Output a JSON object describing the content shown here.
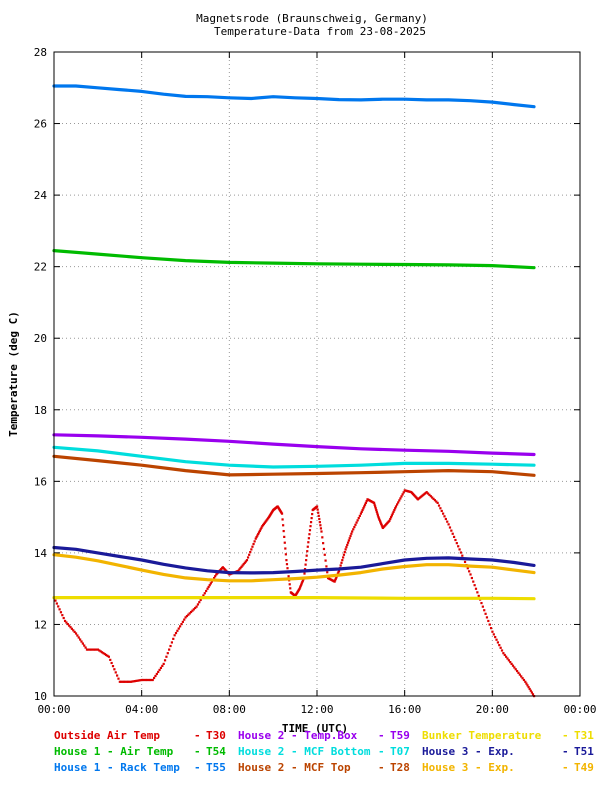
{
  "chart_data": {
    "type": "line",
    "title": "Magnetsrode (Braunschweig, Germany)",
    "subtitle": "Temperature-Data from 23-08-2025",
    "xlabel": "TIME (UTC)",
    "ylabel": "Temperature (deg C)",
    "xlim": [
      0,
      24
    ],
    "ylim": [
      10,
      28
    ],
    "grid": true,
    "x_ticks": [
      {
        "v": 0,
        "label": "00:00"
      },
      {
        "v": 4,
        "label": "04:00"
      },
      {
        "v": 8,
        "label": "08:00"
      },
      {
        "v": 12,
        "label": "12:00"
      },
      {
        "v": 16,
        "label": "16:00"
      },
      {
        "v": 20,
        "label": "20:00"
      },
      {
        "v": 24,
        "label": "00:00"
      }
    ],
    "y_ticks": [
      {
        "v": 10,
        "label": "10"
      },
      {
        "v": 12,
        "label": "12"
      },
      {
        "v": 14,
        "label": "14"
      },
      {
        "v": 16,
        "label": "16"
      },
      {
        "v": 18,
        "label": "18"
      },
      {
        "v": 20,
        "label": "20"
      },
      {
        "v": 22,
        "label": "22"
      },
      {
        "v": 24,
        "label": "24"
      },
      {
        "v": 26,
        "label": "26"
      },
      {
        "v": 28,
        "label": "28"
      }
    ],
    "series": [
      {
        "name": "Outside Air Temp",
        "code": "T30",
        "color": "#dd0000",
        "style": "dots",
        "points": [
          [
            0,
            12.75
          ],
          [
            0.5,
            12.1
          ],
          [
            1,
            11.75
          ],
          [
            1.5,
            11.3
          ],
          [
            2,
            11.3
          ],
          [
            2.5,
            11.1
          ],
          [
            3,
            10.4
          ],
          [
            3.5,
            10.4
          ],
          [
            4,
            10.45
          ],
          [
            4.5,
            10.45
          ],
          [
            5,
            10.9
          ],
          [
            5.5,
            11.7
          ],
          [
            6,
            12.2
          ],
          [
            6.5,
            12.5
          ],
          [
            7,
            13.0
          ],
          [
            7.4,
            13.4
          ],
          [
            7.7,
            13.6
          ],
          [
            8,
            13.4
          ],
          [
            8.4,
            13.5
          ],
          [
            8.8,
            13.8
          ],
          [
            9.2,
            14.4
          ],
          [
            9.5,
            14.75
          ],
          [
            9.8,
            15.0
          ],
          [
            10,
            15.2
          ],
          [
            10.2,
            15.3
          ],
          [
            10.4,
            15.1
          ],
          [
            10.6,
            13.8
          ],
          [
            10.8,
            12.9
          ],
          [
            11,
            12.8
          ],
          [
            11.2,
            13.0
          ],
          [
            11.4,
            13.3
          ],
          [
            11.6,
            14.3
          ],
          [
            11.8,
            15.2
          ],
          [
            12,
            15.3
          ],
          [
            12.2,
            14.6
          ],
          [
            12.5,
            13.3
          ],
          [
            12.8,
            13.2
          ],
          [
            13,
            13.5
          ],
          [
            13.3,
            14.1
          ],
          [
            13.6,
            14.6
          ],
          [
            14,
            15.1
          ],
          [
            14.3,
            15.5
          ],
          [
            14.6,
            15.4
          ],
          [
            14.8,
            15.0
          ],
          [
            15,
            14.7
          ],
          [
            15.3,
            14.9
          ],
          [
            15.6,
            15.3
          ],
          [
            16,
            15.75
          ],
          [
            16.3,
            15.7
          ],
          [
            16.6,
            15.5
          ],
          [
            17,
            15.7
          ],
          [
            17.5,
            15.4
          ],
          [
            18,
            14.8
          ],
          [
            18.5,
            14.1
          ],
          [
            19,
            13.4
          ],
          [
            19.5,
            12.6
          ],
          [
            20,
            11.8
          ],
          [
            20.5,
            11.2
          ],
          [
            21,
            10.8
          ],
          [
            21.5,
            10.4
          ],
          [
            21.9,
            10.0
          ]
        ]
      },
      {
        "name": "House 1 - Air Temp",
        "code": "T54",
        "color": "#00bb00",
        "style": "line",
        "points": [
          [
            0,
            22.45
          ],
          [
            2,
            22.35
          ],
          [
            4,
            22.25
          ],
          [
            6,
            22.17
          ],
          [
            8,
            22.12
          ],
          [
            10,
            22.1
          ],
          [
            12,
            22.08
          ],
          [
            14,
            22.07
          ],
          [
            16,
            22.06
          ],
          [
            18,
            22.05
          ],
          [
            20,
            22.03
          ],
          [
            21.9,
            21.97
          ]
        ]
      },
      {
        "name": "House 1 - Rack Temp",
        "code": "T55",
        "color": "#0077ee",
        "style": "line",
        "points": [
          [
            0,
            27.05
          ],
          [
            1,
            27.05
          ],
          [
            2,
            27.0
          ],
          [
            3,
            26.95
          ],
          [
            4,
            26.9
          ],
          [
            5,
            26.82
          ],
          [
            6,
            26.76
          ],
          [
            7,
            26.75
          ],
          [
            8,
            26.72
          ],
          [
            9,
            26.7
          ],
          [
            10,
            26.75
          ],
          [
            11,
            26.72
          ],
          [
            12,
            26.7
          ],
          [
            13,
            26.67
          ],
          [
            14,
            26.66
          ],
          [
            15,
            26.68
          ],
          [
            16,
            26.68
          ],
          [
            17,
            26.66
          ],
          [
            18,
            26.66
          ],
          [
            19,
            26.64
          ],
          [
            20,
            26.6
          ],
          [
            21,
            26.53
          ],
          [
            21.9,
            26.47
          ]
        ]
      },
      {
        "name": "House 2 - Temp.Box",
        "code": "T59",
        "color": "#9900ee",
        "style": "line",
        "points": [
          [
            0,
            17.3
          ],
          [
            2,
            17.27
          ],
          [
            4,
            17.23
          ],
          [
            6,
            17.18
          ],
          [
            8,
            17.12
          ],
          [
            10,
            17.04
          ],
          [
            12,
            16.97
          ],
          [
            14,
            16.91
          ],
          [
            16,
            16.87
          ],
          [
            18,
            16.84
          ],
          [
            20,
            16.79
          ],
          [
            21.9,
            16.75
          ]
        ]
      },
      {
        "name": "House 2 - MCF Bottom",
        "code": "T07",
        "color": "#00dddd",
        "style": "line",
        "points": [
          [
            0,
            16.95
          ],
          [
            2,
            16.85
          ],
          [
            4,
            16.7
          ],
          [
            6,
            16.55
          ],
          [
            8,
            16.45
          ],
          [
            10,
            16.4
          ],
          [
            12,
            16.42
          ],
          [
            14,
            16.45
          ],
          [
            16,
            16.5
          ],
          [
            18,
            16.5
          ],
          [
            20,
            16.48
          ],
          [
            21.9,
            16.45
          ]
        ]
      },
      {
        "name": "House 2 - MCF Top",
        "code": "T28",
        "color": "#bb4400",
        "style": "line",
        "points": [
          [
            0,
            16.7
          ],
          [
            2,
            16.58
          ],
          [
            4,
            16.45
          ],
          [
            6,
            16.3
          ],
          [
            8,
            16.18
          ],
          [
            10,
            16.2
          ],
          [
            12,
            16.22
          ],
          [
            14,
            16.24
          ],
          [
            16,
            16.27
          ],
          [
            18,
            16.3
          ],
          [
            20,
            16.27
          ],
          [
            21.9,
            16.17
          ]
        ]
      },
      {
        "name": "Bunker Temperature",
        "code": "T31",
        "color": "#eedd00",
        "style": "line",
        "points": [
          [
            0,
            12.75
          ],
          [
            4,
            12.75
          ],
          [
            8,
            12.75
          ],
          [
            12,
            12.75
          ],
          [
            16,
            12.73
          ],
          [
            20,
            12.73
          ],
          [
            21.9,
            12.72
          ]
        ]
      },
      {
        "name": "House 3 - Exp.",
        "code": "T51",
        "color": "#1a1a99",
        "style": "line",
        "points": [
          [
            0,
            14.15
          ],
          [
            1,
            14.1
          ],
          [
            2,
            14.0
          ],
          [
            3,
            13.9
          ],
          [
            4,
            13.8
          ],
          [
            5,
            13.68
          ],
          [
            6,
            13.58
          ],
          [
            7,
            13.5
          ],
          [
            8,
            13.45
          ],
          [
            9,
            13.44
          ],
          [
            10,
            13.45
          ],
          [
            11,
            13.48
          ],
          [
            12,
            13.52
          ],
          [
            13,
            13.55
          ],
          [
            14,
            13.6
          ],
          [
            15,
            13.7
          ],
          [
            16,
            13.8
          ],
          [
            17,
            13.85
          ],
          [
            18,
            13.86
          ],
          [
            19,
            13.83
          ],
          [
            20,
            13.8
          ],
          [
            21,
            13.73
          ],
          [
            21.9,
            13.65
          ]
        ]
      },
      {
        "name": "House 3 - Exp.",
        "code": "T49",
        "color": "#f2b400",
        "style": "line",
        "points": [
          [
            0,
            13.95
          ],
          [
            1,
            13.88
          ],
          [
            2,
            13.78
          ],
          [
            3,
            13.65
          ],
          [
            4,
            13.52
          ],
          [
            5,
            13.4
          ],
          [
            6,
            13.3
          ],
          [
            7,
            13.25
          ],
          [
            8,
            13.22
          ],
          [
            9,
            13.22
          ],
          [
            10,
            13.25
          ],
          [
            11,
            13.28
          ],
          [
            12,
            13.32
          ],
          [
            13,
            13.38
          ],
          [
            14,
            13.45
          ],
          [
            15,
            13.55
          ],
          [
            16,
            13.62
          ],
          [
            17,
            13.67
          ],
          [
            18,
            13.67
          ],
          [
            19,
            13.63
          ],
          [
            20,
            13.6
          ],
          [
            21,
            13.52
          ],
          [
            21.9,
            13.45
          ]
        ]
      }
    ]
  },
  "legend": [
    {
      "name": "Outside Air Temp",
      "dash": "-",
      "code": "T30",
      "color": "#dd0000"
    },
    {
      "name": "House 2 - Temp.Box",
      "dash": "-",
      "code": "T59",
      "color": "#9900ee"
    },
    {
      "name": "Bunker Temperature",
      "dash": "-",
      "code": "T31",
      "color": "#eedd00"
    },
    {
      "name": "House 1 - Air  Temp",
      "dash": "-",
      "code": "T54",
      "color": "#00bb00"
    },
    {
      "name": "House 2 - MCF Bottom",
      "dash": "-",
      "code": "T07",
      "color": "#00dddd"
    },
    {
      "name": "House 3 - Exp.",
      "dash": "-",
      "code": "T51",
      "color": "#1a1a99"
    },
    {
      "name": "House 1 - Rack Temp",
      "dash": "-",
      "code": "T55",
      "color": "#0077ee"
    },
    {
      "name": "House 2 - MCF Top",
      "dash": "-",
      "code": "T28",
      "color": "#bb4400"
    },
    {
      "name": "House 3 - Exp.",
      "dash": "-",
      "code": "T49",
      "color": "#f2b400"
    }
  ]
}
